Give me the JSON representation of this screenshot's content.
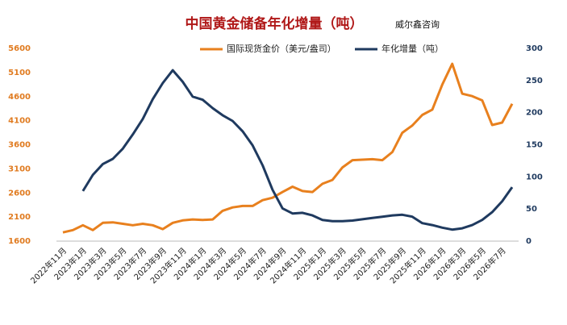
{
  "chart_data": {
    "type": "line",
    "title": "中国黄金储备年化增量（吨）",
    "source": "威尔鑫咨询",
    "categories": [
      "2022年11月",
      null,
      "2023年1月",
      null,
      "2023年3月",
      null,
      "2023年5月",
      null,
      "2023年7月",
      null,
      "2023年9月",
      null,
      "2023年11月",
      null,
      "2024年1月",
      null,
      "2024年3月",
      null,
      "2024年5月",
      null,
      "2024年7月",
      null,
      "2024年9月",
      null,
      "2024年11月",
      null,
      "2025年1月",
      null,
      "2025年3月",
      null,
      "2025年5月",
      null,
      "2025年7月",
      null,
      "2025年9月",
      null,
      "2025年11月",
      null,
      "2026年1月",
      null,
      "2026年3月",
      null,
      "2026年5月",
      null,
      "2026年7月",
      null
    ],
    "series": [
      {
        "name": "国际现货金价（美元/盎司）",
        "color": "#e8801e",
        "axis": "y",
        "values": [
          1780,
          1830,
          1930,
          1830,
          1980,
          1990,
          1960,
          1930,
          1960,
          1930,
          1850,
          1980,
          2030,
          2050,
          2040,
          2050,
          2230,
          2300,
          2330,
          2330,
          2450,
          2500,
          2620,
          2730,
          2640,
          2620,
          2790,
          2870,
          3130,
          3280,
          3290,
          3300,
          3280,
          3450,
          3850,
          4000,
          4220,
          4330,
          4850,
          5280,
          4660,
          4610,
          4520,
          4010,
          4060,
          4450
        ]
      },
      {
        "name": "年化增量（吨）",
        "color": "#1f3a5f",
        "axis": "y2",
        "values": [
          null,
          null,
          78,
          103,
          120,
          128,
          144,
          166,
          190,
          221,
          246,
          266,
          248,
          225,
          220,
          207,
          196,
          187,
          171,
          149,
          118,
          80,
          51,
          43,
          44,
          40,
          33,
          31,
          31,
          32,
          34,
          36,
          38,
          40,
          41,
          38,
          28,
          25,
          21,
          18,
          20,
          25,
          33,
          45,
          62,
          84
        ]
      }
    ],
    "ylim": [
      1600,
      5600
    ],
    "yticks": [
      1600,
      2100,
      2600,
      3100,
      3600,
      4100,
      4600,
      5100,
      5600
    ],
    "y2lim": [
      0,
      300
    ],
    "y2ticks": [
      0,
      50,
      100,
      150,
      200,
      250,
      300
    ],
    "grid": false
  }
}
